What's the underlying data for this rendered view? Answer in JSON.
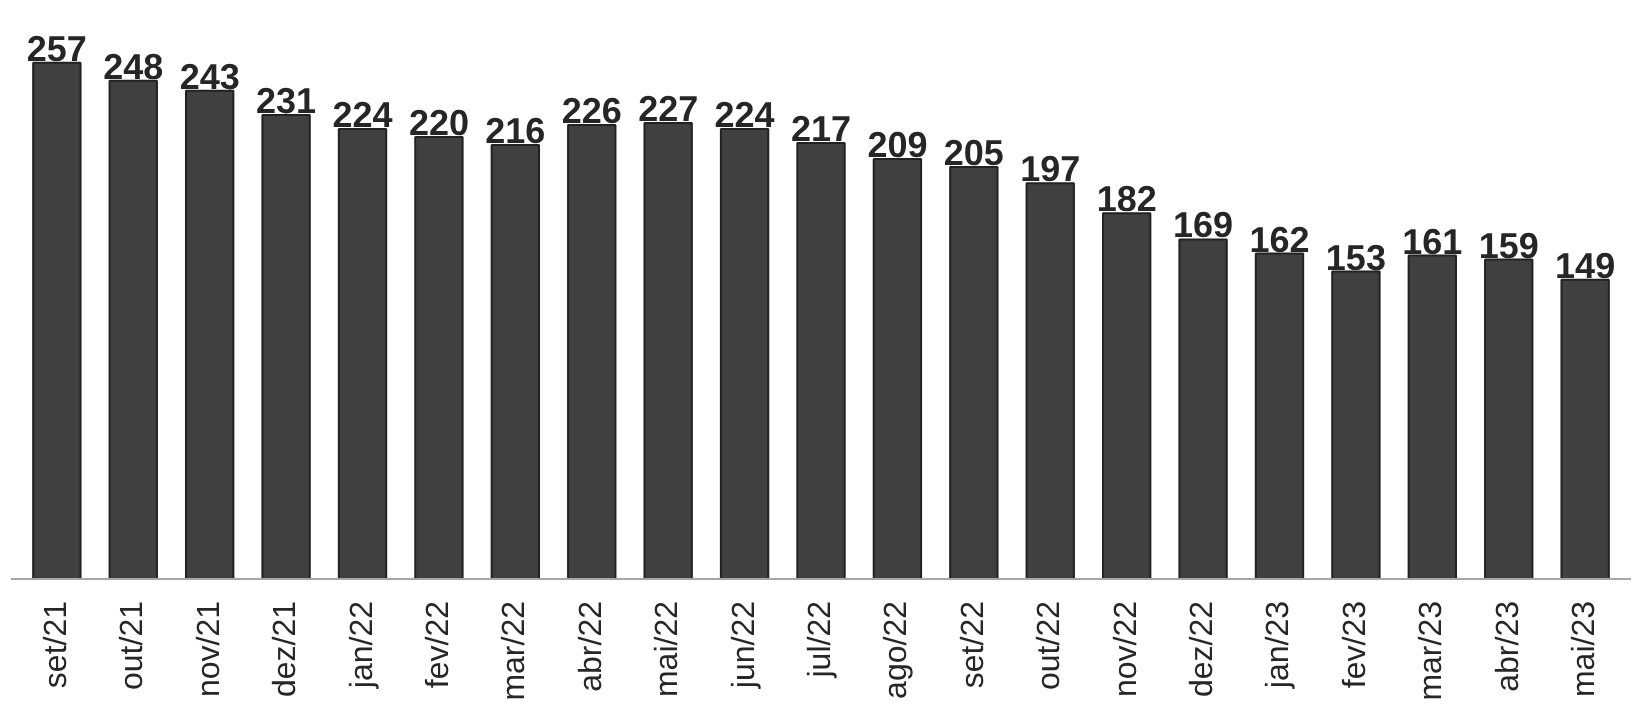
{
  "chart_data": {
    "type": "bar",
    "categories": [
      "set/21",
      "out/21",
      "nov/21",
      "dez/21",
      "jan/22",
      "fev/22",
      "mar/22",
      "abr/22",
      "mai/22",
      "jun/22",
      "jul/22",
      "ago/22",
      "set/22",
      "out/22",
      "nov/22",
      "dez/22",
      "jan/23",
      "fev/23",
      "mar/23",
      "abr/23",
      "mai/23"
    ],
    "values": [
      257,
      248,
      243,
      231,
      224,
      220,
      216,
      226,
      227,
      224,
      217,
      209,
      205,
      197,
      182,
      169,
      162,
      153,
      161,
      159,
      149
    ],
    "color": "#404040",
    "data_labels": true,
    "grid": false,
    "tick_labels": "x"
  }
}
